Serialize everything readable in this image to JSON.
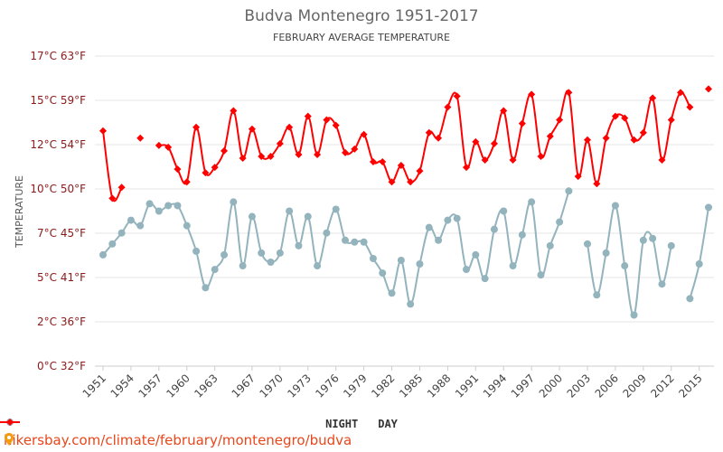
{
  "chart_data": {
    "type": "line",
    "title": "Budva Montenegro 1951-2017",
    "subtitle": "FEBRUARY AVERAGE TEMPERATURE",
    "ylabel": "TEMPERATURE",
    "xlabel": "",
    "ylim": [
      0,
      17
    ],
    "y_ticks": [
      "0°C 32°F",
      "2°C 36°F",
      "5°C 41°F",
      "7°C 45°F",
      "10°C 50°F",
      "12°C 54°F",
      "15°C 59°F",
      "17°C 63°F"
    ],
    "x_ticks": [
      "1951",
      "1954",
      "1957",
      "1960",
      "1963",
      "1967",
      "1970",
      "1973",
      "1976",
      "1979",
      "1982",
      "1985",
      "1988",
      "1991",
      "1994",
      "1997",
      "2000",
      "2003",
      "2006",
      "2009",
      "2012",
      "2015"
    ],
    "grid": true,
    "legend_position": "bottom",
    "x": [
      1951,
      1952,
      1953,
      1954,
      1955,
      1956,
      1957,
      1958,
      1959,
      1960,
      1961,
      1962,
      1963,
      1964,
      1965,
      1966,
      1967,
      1968,
      1969,
      1970,
      1971,
      1972,
      1973,
      1974,
      1975,
      1976,
      1977,
      1978,
      1979,
      1980,
      1981,
      1982,
      1983,
      1984,
      1985,
      1986,
      1987,
      1988,
      1989,
      1990,
      1991,
      1992,
      1993,
      1994,
      1995,
      1996,
      1997,
      1998,
      1999,
      2000,
      2001,
      2002,
      2003,
      2004,
      2005,
      2006,
      2007,
      2008,
      2009,
      2010,
      2011,
      2012,
      2013,
      2014,
      2015,
      2016
    ],
    "series": [
      {
        "name": "NIGHT",
        "color": "#93b3bd",
        "marker": "circle",
        "values": [
          6.1,
          6.7,
          7.3,
          8.0,
          7.7,
          8.9,
          8.5,
          8.8,
          8.8,
          7.7,
          6.3,
          4.3,
          5.3,
          6.1,
          9.0,
          5.5,
          8.2,
          6.2,
          5.7,
          6.2,
          8.5,
          6.6,
          8.2,
          5.5,
          7.3,
          8.6,
          6.9,
          6.8,
          6.8,
          5.9,
          5.1,
          4.0,
          5.8,
          3.4,
          5.6,
          7.6,
          6.9,
          8.0,
          8.1,
          5.3,
          6.1,
          4.8,
          7.5,
          8.5,
          5.5,
          7.2,
          9.0,
          5.0,
          6.6,
          7.9,
          9.6,
          null,
          6.7,
          3.9,
          6.2,
          8.8,
          5.5,
          2.8,
          6.9,
          7.0,
          4.5,
          6.6,
          null,
          3.7,
          5.6,
          8.7
        ]
      },
      {
        "name": "DAY",
        "color": "#ff0000",
        "marker": "diamond",
        "values": [
          12.9,
          9.2,
          9.8,
          null,
          12.5,
          null,
          12.1,
          12.0,
          10.8,
          10.1,
          13.1,
          10.6,
          10.9,
          11.8,
          14.0,
          11.4,
          13.0,
          11.5,
          11.5,
          12.2,
          13.1,
          11.6,
          13.7,
          11.6,
          13.5,
          13.2,
          11.7,
          11.9,
          12.7,
          11.2,
          11.2,
          10.1,
          11.0,
          10.1,
          10.7,
          12.8,
          12.5,
          14.2,
          14.8,
          10.9,
          12.3,
          11.3,
          12.2,
          14.0,
          11.3,
          13.3,
          14.9,
          11.5,
          12.6,
          13.5,
          15.0,
          10.4,
          12.4,
          10.0,
          12.5,
          13.7,
          13.6,
          12.4,
          12.8,
          14.7,
          11.3,
          13.5,
          15.0,
          14.2,
          null,
          15.2
        ]
      }
    ]
  },
  "footer": {
    "url": "hikersbay.com/climate/february/montenegro/budva",
    "icon": "map-pin-icon"
  }
}
